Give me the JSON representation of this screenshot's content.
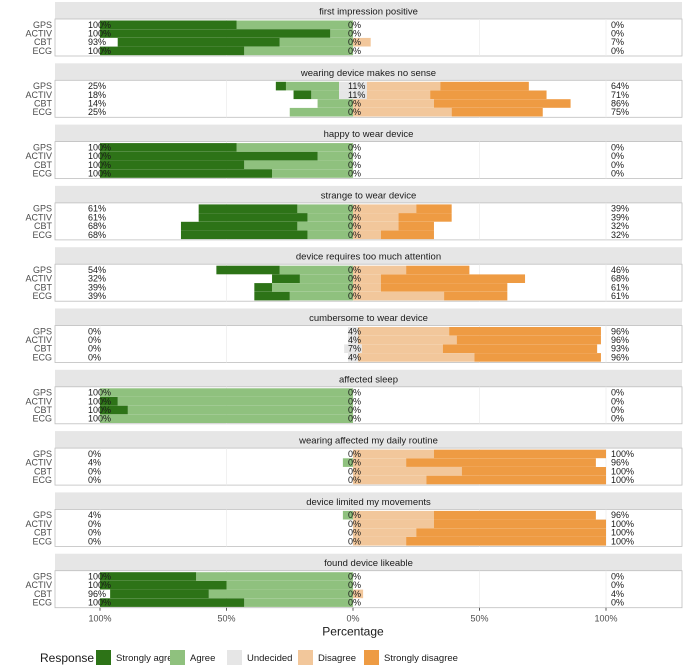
{
  "chart_data": {
    "type": "bar",
    "subtype": "diverging-stacked-likert",
    "xlabel": "Percentage",
    "x_ticks": [
      "100%",
      "50%",
      "0%",
      "50%",
      "100%"
    ],
    "categories": [
      "GPS",
      "ACTIV",
      "CBT",
      "ECG"
    ],
    "response_levels": [
      "Strongly agree",
      "Agree",
      "Undecided",
      "Disagree",
      "Strongly disagree"
    ],
    "legend": {
      "title": "Response",
      "position": "bottom",
      "items": [
        {
          "label": "Strongly agree",
          "color": "#2d7317"
        },
        {
          "label": "Agree",
          "color": "#8fc17e"
        },
        {
          "label": "Undecided",
          "color": "#e6e6e6"
        },
        {
          "label": "Disagree",
          "color": "#f2c79b"
        },
        {
          "label": "Strongly disagree",
          "color": "#ee9b43"
        }
      ]
    },
    "panels": [
      {
        "title": "first impression positive",
        "rows": [
          {
            "group": "GPS",
            "strongly_agree": 54,
            "agree": 46,
            "undecided": 0,
            "disagree": 0,
            "strongly_disagree": 0,
            "left_label": "100%",
            "center_label": "0%",
            "right_label": "0%"
          },
          {
            "group": "ACTIV",
            "strongly_agree": 91,
            "agree": 9,
            "undecided": 0,
            "disagree": 0,
            "strongly_disagree": 0,
            "left_label": "100%",
            "center_label": "0%",
            "right_label": "0%"
          },
          {
            "group": "CBT",
            "strongly_agree": 64,
            "agree": 29,
            "undecided": 0,
            "disagree": 7,
            "strongly_disagree": 0,
            "left_label": "93%",
            "center_label": "0%",
            "right_label": "7%"
          },
          {
            "group": "ECG",
            "strongly_agree": 57,
            "agree": 43,
            "undecided": 0,
            "disagree": 0,
            "strongly_disagree": 0,
            "left_label": "100%",
            "center_label": "0%",
            "right_label": "0%"
          }
        ]
      },
      {
        "title": "wearing device makes no sense",
        "rows": [
          {
            "group": "GPS",
            "strongly_agree": 4,
            "agree": 21,
            "undecided": 11,
            "disagree": 29,
            "strongly_disagree": 35,
            "left_label": "25%",
            "center_label": "11%",
            "right_label": "64%"
          },
          {
            "group": "ACTIV",
            "strongly_agree": 7,
            "agree": 11,
            "undecided": 11,
            "disagree": 25,
            "strongly_disagree": 46,
            "left_label": "18%",
            "center_label": "11%",
            "right_label": "71%"
          },
          {
            "group": "CBT",
            "strongly_agree": 0,
            "agree": 14,
            "undecided": 0,
            "disagree": 32,
            "strongly_disagree": 54,
            "left_label": "14%",
            "center_label": "0%",
            "right_label": "86%"
          },
          {
            "group": "ECG",
            "strongly_agree": 0,
            "agree": 25,
            "undecided": 0,
            "disagree": 39,
            "strongly_disagree": 36,
            "left_label": "25%",
            "center_label": "0%",
            "right_label": "75%"
          }
        ]
      },
      {
        "title": "happy to wear device",
        "rows": [
          {
            "group": "GPS",
            "strongly_agree": 54,
            "agree": 46,
            "undecided": 0,
            "disagree": 0,
            "strongly_disagree": 0,
            "left_label": "100%",
            "center_label": "0%",
            "right_label": "0%"
          },
          {
            "group": "ACTIV",
            "strongly_agree": 86,
            "agree": 14,
            "undecided": 0,
            "disagree": 0,
            "strongly_disagree": 0,
            "left_label": "100%",
            "center_label": "0%",
            "right_label": "0%"
          },
          {
            "group": "CBT",
            "strongly_agree": 57,
            "agree": 43,
            "undecided": 0,
            "disagree": 0,
            "strongly_disagree": 0,
            "left_label": "100%",
            "center_label": "0%",
            "right_label": "0%"
          },
          {
            "group": "ECG",
            "strongly_agree": 68,
            "agree": 32,
            "undecided": 0,
            "disagree": 0,
            "strongly_disagree": 0,
            "left_label": "100%",
            "center_label": "0%",
            "right_label": "0%"
          }
        ]
      },
      {
        "title": "strange to wear device",
        "rows": [
          {
            "group": "GPS",
            "strongly_agree": 39,
            "agree": 22,
            "undecided": 0,
            "disagree": 25,
            "strongly_disagree": 14,
            "left_label": "61%",
            "center_label": "0%",
            "right_label": "39%"
          },
          {
            "group": "ACTIV",
            "strongly_agree": 43,
            "agree": 18,
            "undecided": 0,
            "disagree": 18,
            "strongly_disagree": 21,
            "left_label": "61%",
            "center_label": "0%",
            "right_label": "39%"
          },
          {
            "group": "CBT",
            "strongly_agree": 46,
            "agree": 22,
            "undecided": 0,
            "disagree": 18,
            "strongly_disagree": 14,
            "left_label": "68%",
            "center_label": "0%",
            "right_label": "32%"
          },
          {
            "group": "ECG",
            "strongly_agree": 50,
            "agree": 18,
            "undecided": 0,
            "disagree": 11,
            "strongly_disagree": 21,
            "left_label": "68%",
            "center_label": "0%",
            "right_label": "32%"
          }
        ]
      },
      {
        "title": "device requires too much attention",
        "rows": [
          {
            "group": "GPS",
            "strongly_agree": 25,
            "agree": 29,
            "undecided": 0,
            "disagree": 21,
            "strongly_disagree": 25,
            "left_label": "54%",
            "center_label": "0%",
            "right_label": "46%"
          },
          {
            "group": "ACTIV",
            "strongly_agree": 11,
            "agree": 21,
            "undecided": 0,
            "disagree": 11,
            "strongly_disagree": 57,
            "left_label": "32%",
            "center_label": "0%",
            "right_label": "68%"
          },
          {
            "group": "CBT",
            "strongly_agree": 7,
            "agree": 32,
            "undecided": 0,
            "disagree": 11,
            "strongly_disagree": 50,
            "left_label": "39%",
            "center_label": "0%",
            "right_label": "61%"
          },
          {
            "group": "ECG",
            "strongly_agree": 14,
            "agree": 25,
            "undecided": 0,
            "disagree": 36,
            "strongly_disagree": 25,
            "left_label": "39%",
            "center_label": "0%",
            "right_label": "61%"
          }
        ]
      },
      {
        "title": "cumbersome to wear device",
        "rows": [
          {
            "group": "GPS",
            "strongly_agree": 0,
            "agree": 0,
            "undecided": 4,
            "disagree": 36,
            "strongly_disagree": 60,
            "left_label": "0%",
            "center_label": "4%",
            "right_label": "96%"
          },
          {
            "group": "ACTIV",
            "strongly_agree": 0,
            "agree": 0,
            "undecided": 4,
            "disagree": 39,
            "strongly_disagree": 57,
            "left_label": "0%",
            "center_label": "4%",
            "right_label": "96%"
          },
          {
            "group": "CBT",
            "strongly_agree": 0,
            "agree": 0,
            "undecided": 7,
            "disagree": 32,
            "strongly_disagree": 61,
            "left_label": "0%",
            "center_label": "7%",
            "right_label": "93%"
          },
          {
            "group": "ECG",
            "strongly_agree": 0,
            "agree": 0,
            "undecided": 4,
            "disagree": 46,
            "strongly_disagree": 50,
            "left_label": "0%",
            "center_label": "4%",
            "right_label": "96%"
          }
        ]
      },
      {
        "title": "affected sleep",
        "rows": [
          {
            "group": "GPS",
            "strongly_agree": 0,
            "agree": 100,
            "undecided": 0,
            "disagree": 0,
            "strongly_disagree": 0,
            "left_label": "100%",
            "center_label": "0%",
            "right_label": "0%"
          },
          {
            "group": "ACTIV",
            "strongly_agree": 7,
            "agree": 93,
            "undecided": 0,
            "disagree": 0,
            "strongly_disagree": 0,
            "left_label": "100%",
            "center_label": "0%",
            "right_label": "0%"
          },
          {
            "group": "CBT",
            "strongly_agree": 11,
            "agree": 89,
            "undecided": 0,
            "disagree": 0,
            "strongly_disagree": 0,
            "left_label": "100%",
            "center_label": "0%",
            "right_label": "0%"
          },
          {
            "group": "ECG",
            "strongly_agree": 0,
            "agree": 100,
            "undecided": 0,
            "disagree": 0,
            "strongly_disagree": 0,
            "left_label": "100%",
            "center_label": "0%",
            "right_label": "0%"
          }
        ]
      },
      {
        "title": "wearing affected my daily routine",
        "rows": [
          {
            "group": "GPS",
            "strongly_agree": 0,
            "agree": 0,
            "undecided": 0,
            "disagree": 32,
            "strongly_disagree": 68,
            "left_label": "0%",
            "center_label": "0%",
            "right_label": "100%"
          },
          {
            "group": "ACTIV",
            "strongly_agree": 0,
            "agree": 4,
            "undecided": 0,
            "disagree": 21,
            "strongly_disagree": 75,
            "left_label": "4%",
            "center_label": "0%",
            "right_label": "96%"
          },
          {
            "group": "CBT",
            "strongly_agree": 0,
            "agree": 0,
            "undecided": 0,
            "disagree": 43,
            "strongly_disagree": 57,
            "left_label": "0%",
            "center_label": "0%",
            "right_label": "100%"
          },
          {
            "group": "ECG",
            "strongly_agree": 0,
            "agree": 0,
            "undecided": 0,
            "disagree": 29,
            "strongly_disagree": 71,
            "left_label": "0%",
            "center_label": "0%",
            "right_label": "100%"
          }
        ]
      },
      {
        "title": "device limited my movements",
        "rows": [
          {
            "group": "GPS",
            "strongly_agree": 0,
            "agree": 4,
            "undecided": 0,
            "disagree": 32,
            "strongly_disagree": 64,
            "left_label": "4%",
            "center_label": "0%",
            "right_label": "96%"
          },
          {
            "group": "ACTIV",
            "strongly_agree": 0,
            "agree": 0,
            "undecided": 0,
            "disagree": 32,
            "strongly_disagree": 68,
            "left_label": "0%",
            "center_label": "0%",
            "right_label": "100%"
          },
          {
            "group": "CBT",
            "strongly_agree": 0,
            "agree": 0,
            "undecided": 0,
            "disagree": 25,
            "strongly_disagree": 75,
            "left_label": "0%",
            "center_label": "0%",
            "right_label": "100%"
          },
          {
            "group": "ECG",
            "strongly_agree": 0,
            "agree": 0,
            "undecided": 0,
            "disagree": 21,
            "strongly_disagree": 79,
            "left_label": "0%",
            "center_label": "0%",
            "right_label": "100%"
          }
        ]
      },
      {
        "title": "found device likeable",
        "rows": [
          {
            "group": "GPS",
            "strongly_agree": 38,
            "agree": 62,
            "undecided": 0,
            "disagree": 0,
            "strongly_disagree": 0,
            "left_label": "100%",
            "center_label": "0%",
            "right_label": "0%"
          },
          {
            "group": "ACTIV",
            "strongly_agree": 50,
            "agree": 50,
            "undecided": 0,
            "disagree": 0,
            "strongly_disagree": 0,
            "left_label": "100%",
            "center_label": "0%",
            "right_label": "0%"
          },
          {
            "group": "CBT",
            "strongly_agree": 39,
            "agree": 57,
            "undecided": 0,
            "disagree": 4,
            "strongly_disagree": 0,
            "left_label": "96%",
            "center_label": "0%",
            "right_label": "4%"
          },
          {
            "group": "ECG",
            "strongly_agree": 57,
            "agree": 43,
            "undecided": 0,
            "disagree": 0,
            "strongly_disagree": 0,
            "left_label": "100%",
            "center_label": "0%",
            "right_label": "0%"
          }
        ]
      }
    ]
  }
}
